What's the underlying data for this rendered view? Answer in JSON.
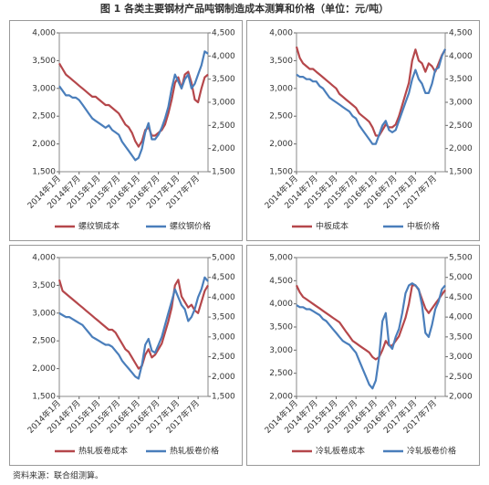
{
  "title": "图 1  各类主要钢材产品吨钢制造成本测算和价格（单位：元/吨）",
  "source": "资料来源：联合组测算。",
  "chart_data": [
    {
      "type": "line",
      "categories": [
        "2014年1月",
        null,
        null,
        null,
        null,
        null,
        "2014年7月",
        null,
        null,
        null,
        null,
        null,
        "2015年1月",
        null,
        null,
        null,
        null,
        null,
        "2015年7月",
        null,
        null,
        null,
        null,
        null,
        "2016年1月",
        null,
        null,
        null,
        null,
        null,
        "2016年7月",
        null,
        null,
        null,
        null,
        null,
        "2017年1月",
        null,
        null,
        null,
        null,
        null,
        "2017年7月",
        null,
        null,
        null
      ],
      "series": [
        {
          "name": "螺纹钢成本",
          "color": "#b5474b",
          "values": [
            3450,
            3350,
            3250,
            3200,
            3150,
            3100,
            3050,
            3000,
            2950,
            2900,
            2850,
            2850,
            2800,
            2750,
            2700,
            2700,
            2650,
            2600,
            2550,
            2450,
            2350,
            2300,
            2200,
            2050,
            1950,
            2050,
            2250,
            2300,
            2150,
            2150,
            2200,
            2250,
            2350,
            2550,
            2800,
            3100,
            3200,
            3000,
            3250,
            3300,
            3100,
            2800,
            2750,
            3000,
            3200,
            3250
          ]
        },
        {
          "name": "螺纹钢价格",
          "color": "#4a7ebb",
          "axis": "y2",
          "values": [
            3350,
            3250,
            3150,
            3150,
            3100,
            3100,
            3050,
            2950,
            2850,
            2750,
            2650,
            2600,
            2550,
            2500,
            2450,
            2500,
            2400,
            2350,
            2300,
            2150,
            2050,
            1950,
            1850,
            1750,
            1800,
            2000,
            2350,
            2550,
            2200,
            2200,
            2300,
            2450,
            2650,
            2900,
            3300,
            3600,
            3450,
            3300,
            3500,
            3600,
            3300,
            3400,
            3600,
            3800,
            4100,
            4050
          ]
        }
      ],
      "ylim": [
        1500,
        4000
      ],
      "yticks": [
        {
          "value": 1500,
          "label": "1,500"
        },
        {
          "value": 2000,
          "label": "2,000"
        },
        {
          "value": 2500,
          "label": "2,500"
        },
        {
          "value": 3000,
          "label": "3,000"
        },
        {
          "value": 3500,
          "label": "3,500"
        },
        {
          "value": 4000,
          "label": "4,000"
        }
      ],
      "y2lim": [
        1500,
        4500
      ],
      "y2ticks": [
        {
          "value": 1500,
          "label": "1,500"
        },
        {
          "value": 2000,
          "label": "2,000"
        },
        {
          "value": 2500,
          "label": "2,500"
        },
        {
          "value": 3000,
          "label": "3,000"
        },
        {
          "value": 3500,
          "label": "3,500"
        },
        {
          "value": 4000,
          "label": "4,000"
        },
        {
          "value": 4500,
          "label": "4,500"
        }
      ],
      "legend": "bottom"
    },
    {
      "type": "line",
      "categories": [
        "2014年1月",
        null,
        null,
        null,
        null,
        null,
        "2014年7月",
        null,
        null,
        null,
        null,
        null,
        "2015年1月",
        null,
        null,
        null,
        null,
        null,
        "2015年7月",
        null,
        null,
        null,
        null,
        null,
        "2016年1月",
        null,
        null,
        null,
        null,
        null,
        "2016年7月",
        null,
        null,
        null,
        null,
        null,
        "2017年1月",
        null,
        null,
        null,
        null,
        null,
        "2017年7月",
        null,
        null,
        null
      ],
      "series": [
        {
          "name": "中板成本",
          "color": "#b5474b",
          "values": [
            3750,
            3550,
            3450,
            3400,
            3350,
            3350,
            3300,
            3250,
            3200,
            3150,
            3100,
            3050,
            3000,
            2900,
            2850,
            2800,
            2750,
            2700,
            2650,
            2550,
            2500,
            2450,
            2400,
            2300,
            2150,
            2150,
            2250,
            2350,
            2300,
            2300,
            2350,
            2500,
            2700,
            2900,
            3100,
            3500,
            3700,
            3500,
            3450,
            3300,
            3450,
            3400,
            3300,
            3450,
            3600,
            3700
          ]
        },
        {
          "name": "中板价格",
          "color": "#4a7ebb",
          "axis": "y2",
          "values": [
            3600,
            3550,
            3550,
            3500,
            3500,
            3450,
            3450,
            3350,
            3300,
            3200,
            3100,
            3050,
            3000,
            2950,
            2900,
            2850,
            2800,
            2700,
            2650,
            2500,
            2400,
            2300,
            2200,
            2100,
            2100,
            2300,
            2500,
            2600,
            2400,
            2350,
            2400,
            2600,
            2800,
            3000,
            3200,
            3500,
            3700,
            3500,
            3400,
            3200,
            3200,
            3400,
            3700,
            3750,
            4000,
            4150
          ]
        }
      ],
      "ylim": [
        1500,
        4000
      ],
      "yticks": [
        {
          "value": 1500,
          "label": "1,500"
        },
        {
          "value": 2000,
          "label": "2,000"
        },
        {
          "value": 2500,
          "label": "2,500"
        },
        {
          "value": 3000,
          "label": "3,000"
        },
        {
          "value": 3500,
          "label": "3,500"
        },
        {
          "value": 4000,
          "label": "4,000"
        }
      ],
      "y2lim": [
        1500,
        4500
      ],
      "y2ticks": [
        {
          "value": 1500,
          "label": "1,500"
        },
        {
          "value": 2000,
          "label": "2,000"
        },
        {
          "value": 2500,
          "label": "2,500"
        },
        {
          "value": 3000,
          "label": "3,000"
        },
        {
          "value": 3500,
          "label": "3,500"
        },
        {
          "value": 4000,
          "label": "4,000"
        },
        {
          "value": 4500,
          "label": "4,500"
        }
      ],
      "legend": "bottom"
    },
    {
      "type": "line",
      "categories": [
        "2014年1月",
        null,
        null,
        null,
        null,
        null,
        "2014年7月",
        null,
        null,
        null,
        null,
        null,
        "2015年1月",
        null,
        null,
        null,
        null,
        null,
        "2015年7月",
        null,
        null,
        null,
        null,
        null,
        "2016年1月",
        null,
        null,
        null,
        null,
        null,
        "2016年7月",
        null,
        null,
        null,
        null,
        null,
        "2017年1月",
        null,
        null,
        null,
        null,
        null,
        "2017年7月",
        null,
        null,
        null
      ],
      "series": [
        {
          "name": "热轧板卷成本",
          "color": "#b5474b",
          "values": [
            3600,
            3400,
            3350,
            3300,
            3250,
            3200,
            3150,
            3100,
            3050,
            3000,
            2950,
            2900,
            2850,
            2800,
            2750,
            2700,
            2700,
            2650,
            2550,
            2450,
            2350,
            2300,
            2200,
            2100,
            2000,
            2050,
            2250,
            2350,
            2200,
            2250,
            2350,
            2450,
            2650,
            2850,
            3100,
            3500,
            3600,
            3300,
            3200,
            3100,
            3150,
            3050,
            3000,
            3200,
            3400,
            3500
          ]
        },
        {
          "name": "热轧板卷价格",
          "color": "#4a7ebb",
          "axis": "y2",
          "values": [
            3600,
            3550,
            3500,
            3500,
            3450,
            3400,
            3350,
            3300,
            3200,
            3100,
            3000,
            2950,
            2900,
            2850,
            2800,
            2800,
            2750,
            2650,
            2550,
            2400,
            2300,
            2200,
            2100,
            2000,
            1950,
            2300,
            2800,
            2950,
            2650,
            2600,
            2800,
            3000,
            3300,
            3600,
            3900,
            4200,
            4000,
            3800,
            3700,
            3400,
            3500,
            3700,
            4000,
            4200,
            4500,
            4400
          ]
        }
      ],
      "ylim": [
        1500,
        4000
      ],
      "yticks": [
        {
          "value": 1500,
          "label": "1,500"
        },
        {
          "value": 2000,
          "label": "2,000"
        },
        {
          "value": 2500,
          "label": "2,500"
        },
        {
          "value": 3000,
          "label": "3,000"
        },
        {
          "value": 3500,
          "label": "3,500"
        },
        {
          "value": 4000,
          "label": "4,000"
        }
      ],
      "y2lim": [
        1500,
        5000
      ],
      "y2ticks": [
        {
          "value": 1500,
          "label": "1,500"
        },
        {
          "value": 2000,
          "label": "2,000"
        },
        {
          "value": 2500,
          "label": "2,500"
        },
        {
          "value": 3000,
          "label": "3,000"
        },
        {
          "value": 3500,
          "label": "3,500"
        },
        {
          "value": 4000,
          "label": "4,000"
        },
        {
          "value": 4500,
          "label": "4,500"
        },
        {
          "value": 5000,
          "label": "5,000"
        }
      ],
      "legend": "bottom"
    },
    {
      "type": "line",
      "categories": [
        "2014年1月",
        null,
        null,
        null,
        null,
        null,
        "2014年7月",
        null,
        null,
        null,
        null,
        null,
        "2015年1月",
        null,
        null,
        null,
        null,
        null,
        "2015年7月",
        null,
        null,
        null,
        null,
        null,
        "2016年1月",
        null,
        null,
        null,
        null,
        null,
        "2016年7月",
        null,
        null,
        null,
        null,
        null,
        "2017年1月",
        null,
        null,
        null,
        null,
        null,
        "2017年7月",
        null,
        null,
        null
      ],
      "series": [
        {
          "name": "冷轧板卷成本",
          "color": "#b5474b",
          "values": [
            4400,
            4250,
            4150,
            4100,
            4050,
            4000,
            3950,
            3900,
            3850,
            3800,
            3750,
            3700,
            3650,
            3600,
            3500,
            3400,
            3300,
            3200,
            3150,
            3100,
            3050,
            3000,
            2950,
            2850,
            2800,
            2850,
            3000,
            3200,
            3100,
            3100,
            3200,
            3300,
            3500,
            3700,
            4000,
            4400,
            4400,
            4300,
            4100,
            3900,
            3800,
            3900,
            4000,
            4100,
            4200,
            4300
          ]
        },
        {
          "name": "冷轧板卷价格",
          "color": "#4a7ebb",
          "axis": "y2",
          "values": [
            4300,
            4250,
            4250,
            4200,
            4200,
            4150,
            4100,
            4050,
            3950,
            3900,
            3800,
            3700,
            3600,
            3500,
            3400,
            3350,
            3300,
            3200,
            3100,
            2900,
            2700,
            2500,
            2300,
            2200,
            2400,
            3000,
            3900,
            4100,
            3300,
            3200,
            3500,
            3700,
            4100,
            4600,
            4800,
            4850,
            4800,
            4700,
            4300,
            3600,
            3500,
            3800,
            4200,
            4400,
            4700,
            4800
          ]
        }
      ],
      "ylim": [
        2000,
        5000
      ],
      "yticks": [
        {
          "value": 2000,
          "label": "2,000"
        },
        {
          "value": 2500,
          "label": "2,500"
        },
        {
          "value": 3000,
          "label": "3,000"
        },
        {
          "value": 3500,
          "label": "3,500"
        },
        {
          "value": 4000,
          "label": "4,000"
        },
        {
          "value": 4500,
          "label": "4,500"
        },
        {
          "value": 5000,
          "label": "5,000"
        }
      ],
      "y2lim": [
        2000,
        5500
      ],
      "y2ticks": [
        {
          "value": 2000,
          "label": "2,000"
        },
        {
          "value": 2500,
          "label": "2,500"
        },
        {
          "value": 3000,
          "label": "3,000"
        },
        {
          "value": 3500,
          "label": "3,500"
        },
        {
          "value": 4000,
          "label": "4,000"
        },
        {
          "value": 4500,
          "label": "4,500"
        },
        {
          "value": 5000,
          "label": "5,000"
        },
        {
          "value": 5500,
          "label": "5,500"
        }
      ],
      "legend": "bottom"
    }
  ]
}
